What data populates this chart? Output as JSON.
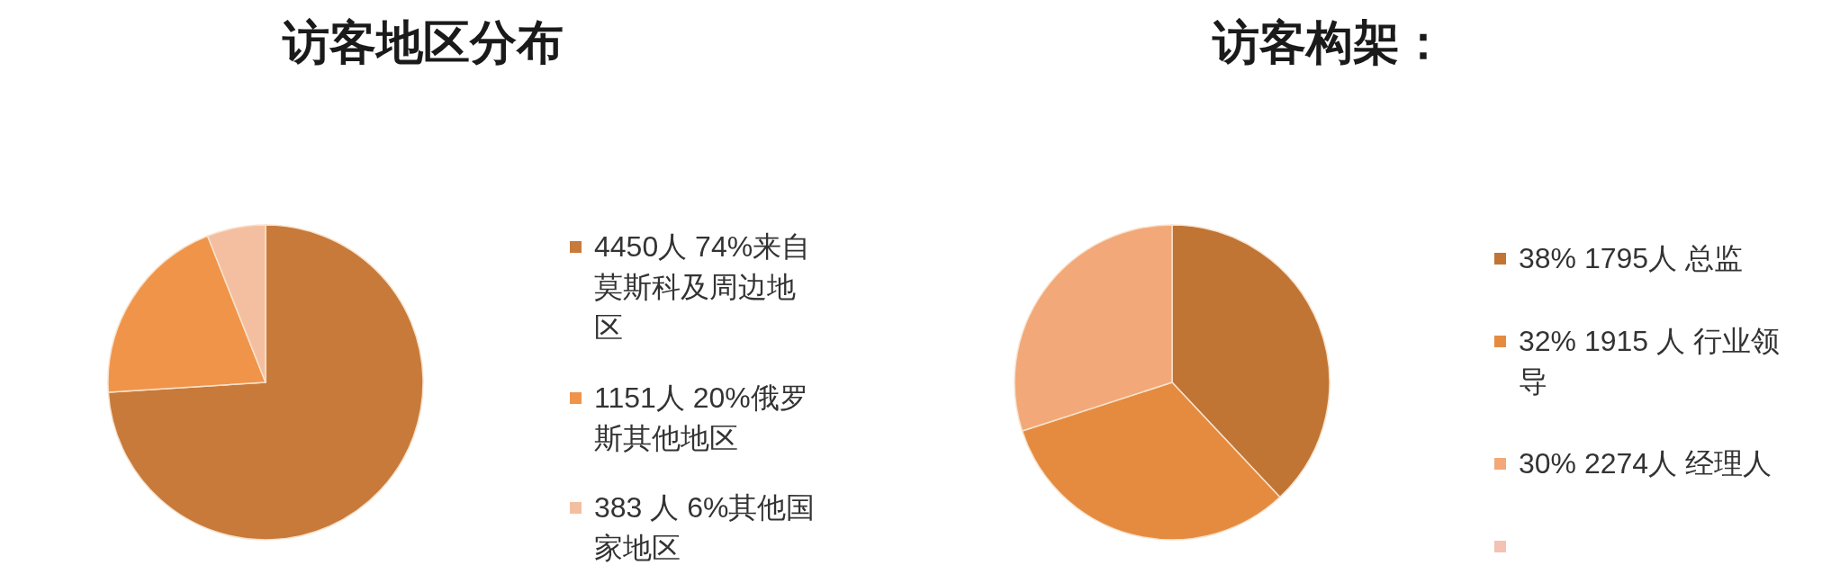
{
  "chart_data": [
    {
      "type": "pie",
      "title": "访客地区分布",
      "categories": [
        "4450人 74%来自莫斯科及周边地区",
        "1151人 20%俄罗斯其他地区",
        "383 人 6%其他国家地区"
      ],
      "values": [
        74,
        20,
        6
      ],
      "colors": [
        "#c87a3a",
        "#f0944a",
        "#f4bfa0"
      ],
      "legend": "right"
    },
    {
      "type": "pie",
      "title": "访客构架：",
      "categories": [
        "38% 1795人 总监",
        "32% 1915 人 行业领导",
        "30% 2274人 经理人",
        null
      ],
      "values": [
        38,
        32,
        30,
        null
      ],
      "colors": [
        "#c07535",
        "#e58b40",
        "#f2a878",
        "#f4c2b2"
      ],
      "legend": "right"
    }
  ]
}
